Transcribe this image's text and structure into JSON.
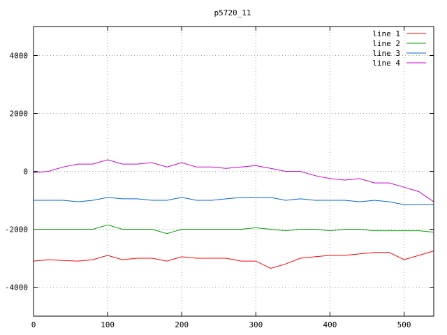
{
  "chart_data": {
    "type": "line",
    "title": "p5720_11",
    "xlabel": "",
    "ylabel": "",
    "xlim": [
      0,
      540
    ],
    "ylim": [
      -5000,
      5000
    ],
    "x_ticks": [
      0,
      100,
      200,
      300,
      400,
      500
    ],
    "y_ticks": [
      -4000,
      -2000,
      0,
      2000,
      4000
    ],
    "grid": true,
    "legend_position": "top-right",
    "x": [
      0,
      20,
      40,
      60,
      80,
      100,
      120,
      140,
      160,
      180,
      200,
      220,
      240,
      260,
      280,
      300,
      320,
      340,
      360,
      380,
      400,
      420,
      440,
      460,
      480,
      500,
      520,
      540
    ],
    "series": [
      {
        "name": "line 1",
        "color": "#ff0000",
        "values": [
          -3100,
          -3050,
          -3080,
          -3100,
          -3050,
          -2900,
          -3050,
          -3000,
          -3000,
          -3100,
          -2950,
          -3000,
          -3000,
          -3000,
          -3100,
          -3100,
          -3350,
          -3200,
          -3000,
          -2950,
          -2900,
          -2900,
          -2850,
          -2800,
          -2800,
          -3050,
          -2900,
          -2750
        ]
      },
      {
        "name": "line 2",
        "color": "#00a000",
        "values": [
          -2000,
          -2000,
          -2000,
          -2000,
          -2000,
          -1850,
          -2000,
          -2000,
          -2000,
          -2150,
          -2000,
          -2000,
          -2000,
          -2000,
          -2000,
          -1950,
          -2000,
          -2050,
          -2000,
          -2000,
          -2050,
          -2000,
          -2000,
          -2050,
          -2050,
          -2050,
          -2050,
          -2100
        ]
      },
      {
        "name": "line 3",
        "color": "#0066cc",
        "values": [
          -1000,
          -1000,
          -1000,
          -1050,
          -1000,
          -900,
          -950,
          -950,
          -1000,
          -1000,
          -900,
          -1000,
          -1000,
          -950,
          -900,
          -900,
          -900,
          -1000,
          -950,
          -1000,
          -1000,
          -1000,
          -1050,
          -1000,
          -1050,
          -1150,
          -1150,
          -1150
        ]
      },
      {
        "name": "line 4",
        "color": "#cc00cc",
        "values": [
          -50,
          0,
          150,
          250,
          250,
          400,
          250,
          250,
          300,
          150,
          300,
          150,
          150,
          100,
          150,
          200,
          100,
          0,
          0,
          -150,
          -250,
          -300,
          -250,
          -400,
          -400,
          -550,
          -700,
          -1050
        ]
      }
    ]
  }
}
